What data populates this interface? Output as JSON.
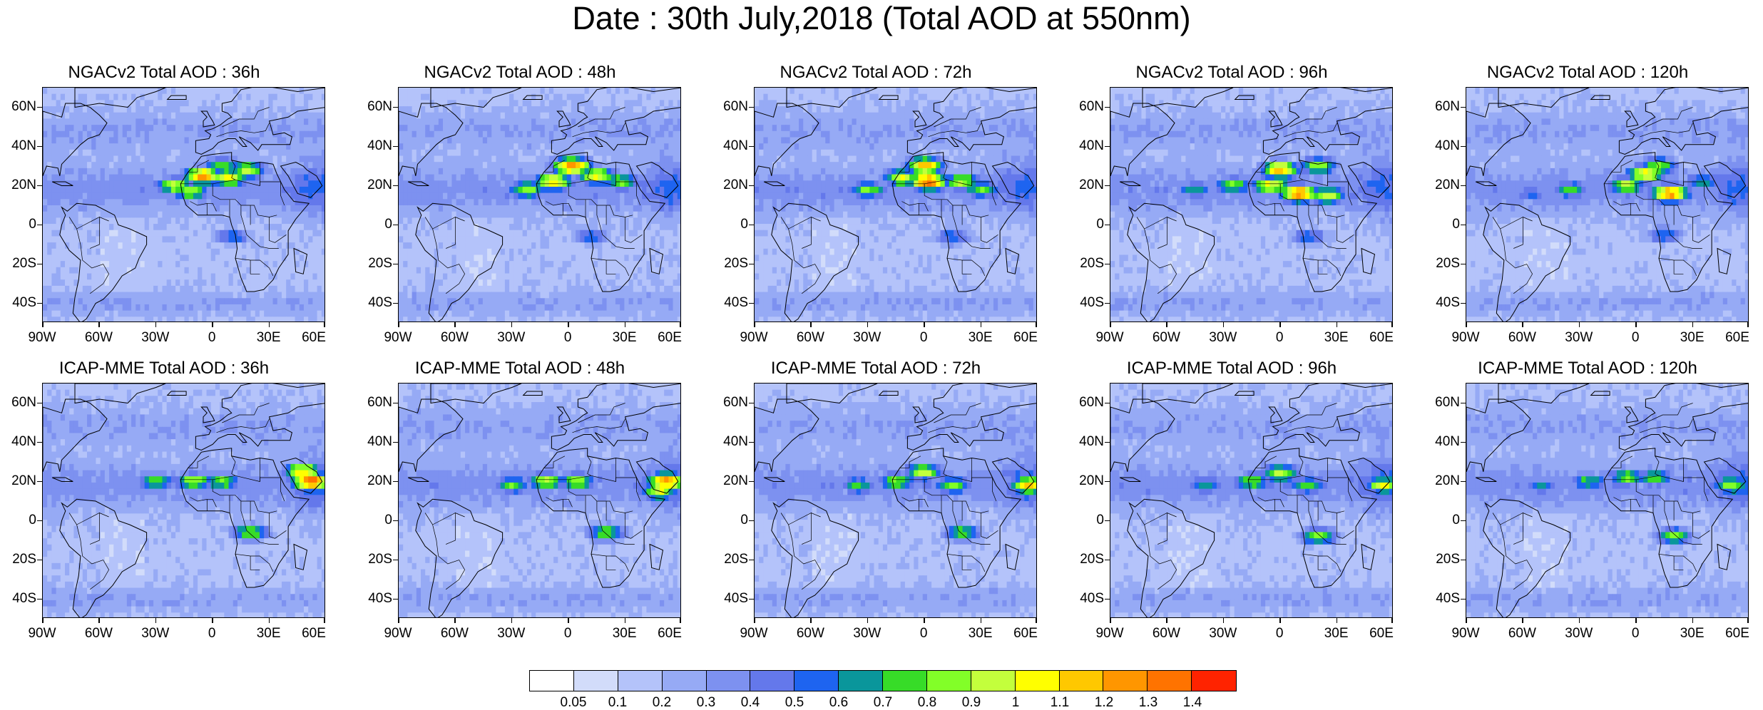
{
  "title": "Date : 30th July,2018 (Total AOD at 550nm)",
  "panels": [
    {
      "title": "NGACv2 Total AOD : 36h",
      "model": "NGACv2",
      "lead": "36h",
      "plume": [
        [
          -20,
          20,
          0.95
        ],
        [
          -5,
          25,
          1.25
        ],
        [
          8,
          24,
          1.1
        ],
        [
          18,
          28,
          0.95
        ],
        [
          -12,
          17,
          0.9
        ],
        [
          10,
          -6,
          0.6
        ],
        [
          5,
          30,
          0.8
        ]
      ]
    },
    {
      "title": "NGACv2 Total AOD : 48h",
      "model": "NGACv2",
      "lead": "48h",
      "plume": [
        [
          -22,
          18,
          0.9
        ],
        [
          -8,
          22,
          1.15
        ],
        [
          2,
          30,
          1.3
        ],
        [
          15,
          25,
          1.05
        ],
        [
          28,
          22,
          0.85
        ],
        [
          12,
          -6,
          0.6
        ]
      ]
    },
    {
      "title": "NGACv2 Total AOD : 72h",
      "model": "NGACv2",
      "lead": "72h",
      "plume": [
        [
          -30,
          18,
          0.85
        ],
        [
          -12,
          24,
          1.0
        ],
        [
          0,
          30,
          1.2
        ],
        [
          2,
          22,
          1.35
        ],
        [
          20,
          22,
          0.95
        ],
        [
          30,
          18,
          0.8
        ],
        [
          15,
          -6,
          0.6
        ]
      ]
    },
    {
      "title": "NGACv2 Total AOD : 96h",
      "model": "NGACv2",
      "lead": "96h",
      "plume": [
        [
          -45,
          18,
          0.65
        ],
        [
          -25,
          20,
          0.85
        ],
        [
          -5,
          20,
          1.05
        ],
        [
          0,
          28,
          1.2
        ],
        [
          10,
          16,
          1.3
        ],
        [
          20,
          30,
          0.9
        ],
        [
          25,
          15,
          1.0
        ],
        [
          15,
          -6,
          0.6
        ]
      ]
    },
    {
      "title": "NGACv2 Total AOD : 120h",
      "model": "NGACv2",
      "lead": "120h",
      "plume": [
        [
          -55,
          16,
          0.55
        ],
        [
          -35,
          18,
          0.75
        ],
        [
          -5,
          20,
          0.95
        ],
        [
          5,
          26,
          1.1
        ],
        [
          18,
          16,
          1.3
        ],
        [
          12,
          30,
          0.85
        ],
        [
          35,
          22,
          0.7
        ],
        [
          15,
          -5,
          0.6
        ]
      ]
    },
    {
      "title": "ICAP-MME Total AOD : 36h",
      "model": "ICAP-MME",
      "lead": "36h",
      "plume": [
        [
          -30,
          20,
          0.8
        ],
        [
          -10,
          20,
          0.95
        ],
        [
          5,
          20,
          0.85
        ],
        [
          20,
          -6,
          0.85
        ],
        [
          52,
          20,
          1.4
        ],
        [
          48,
          25,
          1.1
        ]
      ]
    },
    {
      "title": "ICAP-MME Total AOD : 48h",
      "model": "ICAP-MME",
      "lead": "48h",
      "plume": [
        [
          -30,
          18,
          0.8
        ],
        [
          -12,
          20,
          0.95
        ],
        [
          5,
          20,
          0.9
        ],
        [
          20,
          -6,
          0.85
        ],
        [
          52,
          20,
          1.3
        ],
        [
          48,
          15,
          1.0
        ]
      ]
    },
    {
      "title": "ICAP-MME Total AOD : 72h",
      "model": "ICAP-MME",
      "lead": "72h",
      "plume": [
        [
          -35,
          18,
          0.75
        ],
        [
          -15,
          20,
          0.85
        ],
        [
          0,
          25,
          0.95
        ],
        [
          15,
          18,
          0.85
        ],
        [
          20,
          -6,
          0.8
        ],
        [
          55,
          18,
          1.15
        ]
      ]
    },
    {
      "title": "ICAP-MME Total AOD : 96h",
      "model": "ICAP-MME",
      "lead": "96h",
      "plume": [
        [
          -40,
          18,
          0.7
        ],
        [
          -15,
          20,
          0.85
        ],
        [
          0,
          24,
          0.95
        ],
        [
          15,
          18,
          0.8
        ],
        [
          20,
          -8,
          0.85
        ],
        [
          55,
          18,
          1.0
        ]
      ]
    },
    {
      "title": "ICAP-MME Total AOD : 120h",
      "model": "ICAP-MME",
      "lead": "120h",
      "plume": [
        [
          -50,
          18,
          0.6
        ],
        [
          -25,
          20,
          0.75
        ],
        [
          -5,
          22,
          0.85
        ],
        [
          10,
          22,
          0.8
        ],
        [
          20,
          -8,
          0.85
        ],
        [
          50,
          18,
          0.9
        ]
      ]
    }
  ],
  "map": {
    "lat_labels": [
      "60N",
      "40N",
      "20N",
      "0",
      "20S",
      "40S"
    ],
    "lat_values": [
      60,
      40,
      20,
      0,
      -20,
      -40
    ],
    "lon_labels": [
      "90W",
      "60W",
      "30W",
      "0",
      "30E",
      "60E"
    ],
    "lon_values": [
      -90,
      -60,
      -30,
      0,
      30,
      60
    ],
    "lon_range": [
      -90,
      60
    ],
    "lat_range": [
      -50,
      70
    ]
  },
  "colorbar": {
    "labels": [
      "0.05",
      "0.1",
      "0.2",
      "0.3",
      "0.4",
      "0.5",
      "0.6",
      "0.7",
      "0.8",
      "0.9",
      "1",
      "1.1",
      "1.2",
      "1.3",
      "1.4"
    ],
    "levels": [
      0.05,
      0.1,
      0.2,
      0.3,
      0.4,
      0.5,
      0.6,
      0.7,
      0.8,
      0.9,
      1,
      1.1,
      1.2,
      1.3,
      1.4
    ],
    "colors": [
      "#ffffff",
      "#d2dcfa",
      "#b4c3fa",
      "#96aaf5",
      "#7d91f0",
      "#6478eb",
      "#1e64f0",
      "#0a969b",
      "#37dc28",
      "#82ff28",
      "#c3ff3c",
      "#ffff00",
      "#ffc800",
      "#ff9600",
      "#ff7300",
      "#ff2300"
    ]
  }
}
